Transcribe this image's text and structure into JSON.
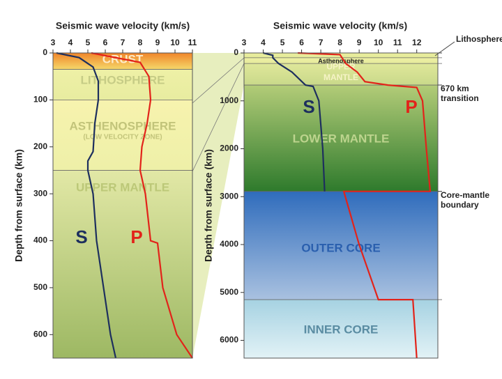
{
  "chart_data": [
    {
      "type": "line",
      "title": "Seismic wave velocity (km/s)",
      "ylabel": "Depth from surface (km)",
      "xlim": [
        3,
        11
      ],
      "xticks": [
        3,
        4,
        5,
        6,
        7,
        8,
        9,
        10,
        11
      ],
      "ylim": [
        0,
        650
      ],
      "yticks": [
        0,
        100,
        200,
        300,
        400,
        500,
        600
      ],
      "y_inverted": true,
      "regions": [
        {
          "label": [
            "CRUST"
          ],
          "from": 0,
          "to": 35,
          "color": "#f0852a",
          "color2": "#f5d86a",
          "label_color": "#fdebc8"
        },
        {
          "label": [
            "LITHOSPHERE"
          ],
          "from": 35,
          "to": 100,
          "color": "#eef0a6",
          "color2": "#e8eca0",
          "label_color": "#c6cc86"
        },
        {
          "label": [
            "ASTHENOSPHERE",
            "(LOW VELOCITY ZONE)"
          ],
          "from": 100,
          "to": 250,
          "color": "#f7f3ae",
          "color2": "#eef0a8",
          "label_color": "#c2c47a"
        },
        {
          "label": [
            "UPPER MANTLE"
          ],
          "from": 250,
          "to": 650,
          "color": "#e2e8a6",
          "color2": "#9db863",
          "label_color": "#bcc878"
        }
      ],
      "series": [
        {
          "name": "S",
          "color": "#1d2f5e",
          "depth": [
            0,
            10,
            30,
            60,
            100,
            150,
            210,
            230,
            250,
            300,
            400,
            500,
            600,
            650
          ],
          "values": [
            3.2,
            4.5,
            5.3,
            5.6,
            5.6,
            5.4,
            5.3,
            5.0,
            5.0,
            5.3,
            5.5,
            5.9,
            6.3,
            6.6
          ]
        },
        {
          "name": "P",
          "color": "#e2231a",
          "depth": [
            0,
            20,
            50,
            100,
            150,
            200,
            250,
            300,
            400,
            405,
            500,
            600,
            650
          ],
          "values": [
            5.2,
            8.0,
            8.5,
            8.6,
            8.4,
            8.1,
            8.0,
            8.3,
            8.6,
            9.0,
            9.3,
            10.1,
            11.0
          ]
        }
      ]
    },
    {
      "type": "line",
      "title": "Seismic wave velocity (km/s)",
      "ylabel": "Depth from surface (km)",
      "xlim": [
        3,
        13.1
      ],
      "xticks": [
        3,
        4,
        5,
        6,
        7,
        8,
        9,
        10,
        11,
        12
      ],
      "ylim": [
        0,
        6371
      ],
      "yticks": [
        0,
        1000,
        2000,
        3000,
        4000,
        5000,
        6000
      ],
      "y_inverted": true,
      "regions": [
        {
          "from": 0,
          "to": 100,
          "color": "#eaee9e",
          "color2": "#e4ea98"
        },
        {
          "label": [
            "Asthenosphere"
          ],
          "from": 100,
          "to": 220,
          "color": "#eef0a4",
          "color2": "#e6ea9c",
          "label_color": "#222222"
        },
        {
          "label": [
            "UPPER",
            "MANTLE"
          ],
          "from": 220,
          "to": 670,
          "color": "#dfe79a",
          "color2": "#c9d98a",
          "label_color": "#f6f3c6"
        },
        {
          "label": [
            "LOWER MANTLE"
          ],
          "from": 670,
          "to": 2890,
          "color": "#b3cc78",
          "color2": "#2e7a2c",
          "label_color": "#bdd48e"
        },
        {
          "label": [
            "OUTER CORE"
          ],
          "from": 2890,
          "to": 5150,
          "color": "#2f6cbc",
          "color2": "#a9c1e0",
          "label_color": "#2a5fae"
        },
        {
          "label": [
            "INNER CORE"
          ],
          "from": 5150,
          "to": 6371,
          "color": "#a6d2e2",
          "color2": "#e2f2f6",
          "label_color": "#5a8ca2"
        }
      ],
      "annotations": [
        {
          "text": [
            "Lithosphere"
          ],
          "at": 0
        },
        {
          "text": [
            "670 km",
            "transition"
          ],
          "at": 670
        },
        {
          "text": [
            "Core-mantle",
            "boundary"
          ],
          "at": 2890
        }
      ],
      "series": [
        {
          "name": "S",
          "color": "#1d2f5e",
          "depth": [
            0,
            50,
            100,
            220,
            400,
            670,
            700,
            1000,
            2000,
            2890
          ],
          "values": [
            4.0,
            4.5,
            4.5,
            4.8,
            5.5,
            6.2,
            6.6,
            6.9,
            7.1,
            7.2
          ]
        },
        {
          "name": "P",
          "color": "#e2231a",
          "depth": [
            0,
            35,
            220,
            400,
            600,
            670,
            720,
            1000,
            2000,
            2890,
            2890,
            4000,
            5150,
            5150,
            6371
          ],
          "values": [
            5.8,
            8.0,
            8.3,
            8.9,
            9.3,
            10.5,
            12.0,
            12.3,
            12.5,
            12.7,
            8.2,
            9.0,
            10.0,
            11.8,
            12.0
          ]
        }
      ]
    }
  ]
}
